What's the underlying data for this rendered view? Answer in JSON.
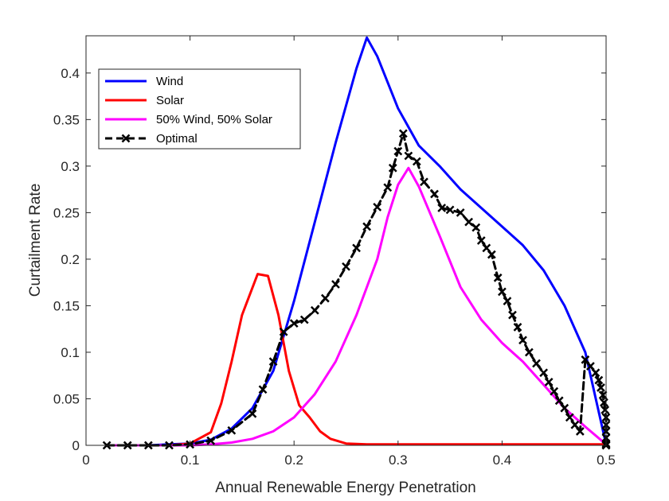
{
  "chart_data": {
    "type": "line",
    "title": "",
    "xlabel": "Annual Renewable Energy Penetration",
    "ylabel": "Curtailment Rate",
    "xlim": [
      0,
      0.5
    ],
    "ylim": [
      0,
      0.44
    ],
    "xticks": [
      0,
      0.1,
      0.2,
      0.3,
      0.4,
      0.5
    ],
    "xtick_labels": [
      "0",
      "0.1",
      "0.2",
      "0.3",
      "0.4",
      "0.5"
    ],
    "yticks": [
      0,
      0.05,
      0.1,
      0.15,
      0.2,
      0.25,
      0.3,
      0.35,
      0.4
    ],
    "ytick_labels": [
      "0",
      "0.05",
      "0.1",
      "0.15",
      "0.2",
      "0.25",
      "0.3",
      "0.35",
      "0.4"
    ],
    "grid": false,
    "legend_position": "top-left",
    "series": [
      {
        "name": "Wind",
        "color": "#0000ff",
        "style": "solid",
        "x": [
          0.02,
          0.04,
          0.06,
          0.08,
          0.1,
          0.12,
          0.14,
          0.16,
          0.18,
          0.2,
          0.22,
          0.24,
          0.26,
          0.27,
          0.28,
          0.3,
          0.32,
          0.34,
          0.36,
          0.38,
          0.4,
          0.42,
          0.44,
          0.46,
          0.48,
          0.5
        ],
        "y": [
          0,
          0,
          0,
          0.001,
          0.002,
          0.006,
          0.018,
          0.04,
          0.08,
          0.155,
          0.24,
          0.325,
          0.405,
          0.438,
          0.418,
          0.362,
          0.322,
          0.3,
          0.275,
          0.255,
          0.235,
          0.215,
          0.188,
          0.15,
          0.1,
          0.001
        ]
      },
      {
        "name": "Solar",
        "color": "#ff0000",
        "style": "solid",
        "x": [
          0.02,
          0.04,
          0.06,
          0.08,
          0.1,
          0.12,
          0.13,
          0.14,
          0.15,
          0.165,
          0.175,
          0.185,
          0.195,
          0.205,
          0.215,
          0.225,
          0.235,
          0.25,
          0.27,
          0.3,
          0.35,
          0.4,
          0.45,
          0.5
        ],
        "y": [
          0,
          0,
          0,
          0,
          0.002,
          0.014,
          0.045,
          0.09,
          0.14,
          0.184,
          0.182,
          0.14,
          0.08,
          0.043,
          0.03,
          0.015,
          0.007,
          0.002,
          0.001,
          0.001,
          0.001,
          0.001,
          0.001,
          0.001
        ]
      },
      {
        "name": "50% Wind, 50% Solar",
        "color": "#ff00ff",
        "style": "solid",
        "x": [
          0.02,
          0.04,
          0.06,
          0.08,
          0.1,
          0.12,
          0.14,
          0.16,
          0.18,
          0.2,
          0.22,
          0.24,
          0.26,
          0.28,
          0.29,
          0.3,
          0.31,
          0.32,
          0.34,
          0.36,
          0.38,
          0.4,
          0.42,
          0.44,
          0.46,
          0.48,
          0.5
        ],
        "y": [
          0,
          0,
          0,
          0,
          0,
          0.001,
          0.003,
          0.007,
          0.015,
          0.03,
          0.055,
          0.09,
          0.14,
          0.2,
          0.245,
          0.28,
          0.298,
          0.278,
          0.225,
          0.17,
          0.135,
          0.11,
          0.09,
          0.065,
          0.04,
          0.02,
          0.001
        ]
      },
      {
        "name": "Optimal",
        "color": "#000000",
        "style": "dashed",
        "marker": "x",
        "x": [
          0.02,
          0.04,
          0.06,
          0.08,
          0.1,
          0.12,
          0.14,
          0.16,
          0.17,
          0.18,
          0.19,
          0.2,
          0.21,
          0.22,
          0.23,
          0.24,
          0.25,
          0.26,
          0.27,
          0.28,
          0.29,
          0.295,
          0.3,
          0.305,
          0.31,
          0.318,
          0.325,
          0.335,
          0.342,
          0.35,
          0.36,
          0.368,
          0.375,
          0.38,
          0.385,
          0.39,
          0.396,
          0.4,
          0.405,
          0.41,
          0.415,
          0.42,
          0.426,
          0.433,
          0.44,
          0.445,
          0.45,
          0.455,
          0.46,
          0.465,
          0.47,
          0.475,
          0.48,
          0.485,
          0.49,
          0.493,
          0.495,
          0.497,
          0.498,
          0.499,
          0.5,
          0.5,
          0.5,
          0.5,
          0.5,
          0.5,
          0.5,
          0.5
        ],
        "y": [
          0,
          0,
          0,
          0,
          0.001,
          0.005,
          0.016,
          0.034,
          0.06,
          0.09,
          0.122,
          0.131,
          0.135,
          0.145,
          0.158,
          0.173,
          0.192,
          0.212,
          0.235,
          0.256,
          0.277,
          0.298,
          0.316,
          0.335,
          0.311,
          0.305,
          0.283,
          0.27,
          0.255,
          0.253,
          0.25,
          0.24,
          0.234,
          0.22,
          0.212,
          0.205,
          0.18,
          0.165,
          0.155,
          0.14,
          0.127,
          0.113,
          0.1,
          0.088,
          0.078,
          0.068,
          0.058,
          0.048,
          0.04,
          0.03,
          0.022,
          0.015,
          0.092,
          0.085,
          0.078,
          0.07,
          0.062,
          0.054,
          0.046,
          0.038,
          0.03,
          0.022,
          0.015,
          0.008,
          0.002,
          0.001,
          0.0,
          0.0
        ]
      }
    ]
  }
}
